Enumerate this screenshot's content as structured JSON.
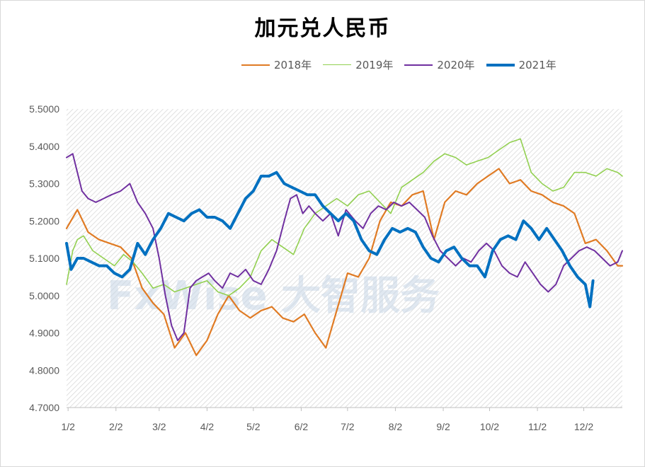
{
  "chart_data": {
    "type": "line",
    "title": "加元兑人民币",
    "watermark": "FxWise 大智服务",
    "ylim": [
      4.7,
      5.5
    ],
    "yticks": [
      "5.5000",
      "5.4000",
      "5.3000",
      "5.2000",
      "5.1000",
      "5.0000",
      "4.9000",
      "4.8000",
      "4.7000"
    ],
    "ytick_values": [
      5.5,
      5.4,
      5.3,
      5.2,
      5.1,
      5.0,
      4.9,
      4.8,
      4.7
    ],
    "xticks": [
      "1/2",
      "2/2",
      "3/2",
      "4/2",
      "5/2",
      "6/2",
      "7/2",
      "8/2",
      "9/2",
      "10/2",
      "11/2",
      "12/2"
    ],
    "xlim": [
      1,
      361
    ],
    "grid": "hatched background",
    "legend_position": "top-right",
    "series": [
      {
        "name": "2018年",
        "color": "#E07B24",
        "width": 2.2,
        "x": [
          1,
          8,
          15,
          22,
          29,
          36,
          43,
          50,
          57,
          64,
          71,
          78,
          85,
          92,
          99,
          106,
          113,
          120,
          127,
          134,
          141,
          148,
          155,
          162,
          169,
          176,
          183,
          190,
          197,
          204,
          211,
          218,
          225,
          232,
          239,
          246,
          253,
          260,
          267,
          274,
          281,
          288,
          295,
          302,
          309,
          316,
          323,
          330,
          337,
          344,
          351,
          358,
          361
        ],
        "y": [
          5.18,
          5.23,
          5.17,
          5.15,
          5.14,
          5.13,
          5.1,
          5.02,
          4.98,
          4.95,
          4.86,
          4.9,
          4.84,
          4.88,
          4.95,
          5.0,
          4.96,
          4.94,
          4.96,
          4.97,
          4.94,
          4.93,
          4.95,
          4.9,
          4.86,
          4.96,
          5.06,
          5.05,
          5.1,
          5.2,
          5.25,
          5.24,
          5.27,
          5.28,
          5.15,
          5.25,
          5.28,
          5.27,
          5.3,
          5.32,
          5.34,
          5.3,
          5.31,
          5.28,
          5.27,
          5.25,
          5.24,
          5.22,
          5.14,
          5.15,
          5.12,
          5.08,
          5.08
        ]
      },
      {
        "name": "2019年",
        "color": "#92D050",
        "width": 1.6,
        "x": [
          1,
          5,
          8,
          12,
          18,
          25,
          32,
          38,
          44,
          50,
          57,
          64,
          71,
          78,
          85,
          92,
          99,
          106,
          113,
          120,
          127,
          134,
          141,
          148,
          155,
          162,
          169,
          176,
          183,
          190,
          197,
          204,
          211,
          218,
          225,
          232,
          239,
          246,
          253,
          260,
          267,
          274,
          281,
          288,
          295,
          302,
          309,
          316,
          323,
          330,
          337,
          344,
          351,
          358,
          361
        ],
        "y": [
          5.03,
          5.12,
          5.15,
          5.16,
          5.12,
          5.1,
          5.08,
          5.11,
          5.09,
          5.06,
          5.02,
          5.03,
          5.01,
          5.02,
          5.03,
          5.04,
          5.01,
          5.0,
          5.02,
          5.05,
          5.12,
          5.15,
          5.13,
          5.11,
          5.18,
          5.22,
          5.24,
          5.26,
          5.24,
          5.27,
          5.28,
          5.25,
          5.22,
          5.29,
          5.31,
          5.33,
          5.36,
          5.38,
          5.37,
          5.35,
          5.36,
          5.37,
          5.39,
          5.41,
          5.42,
          5.33,
          5.3,
          5.28,
          5.29,
          5.33,
          5.33,
          5.32,
          5.34,
          5.33,
          5.32
        ]
      },
      {
        "name": "2020年",
        "color": "#7030A0",
        "width": 2.0,
        "x": [
          1,
          5,
          8,
          11,
          15,
          20,
          25,
          30,
          36,
          42,
          47,
          52,
          57,
          61,
          65,
          69,
          73,
          77,
          81,
          85,
          89,
          93,
          97,
          102,
          107,
          112,
          117,
          122,
          127,
          132,
          137,
          142,
          146,
          150,
          154,
          158,
          162,
          167,
          172,
          177,
          182,
          188,
          193,
          198,
          203,
          208,
          213,
          218,
          223,
          228,
          233,
          238,
          243,
          248,
          253,
          258,
          263,
          268,
          273,
          278,
          283,
          288,
          293,
          298,
          303,
          308,
          313,
          318,
          323,
          328,
          333,
          338,
          343,
          348,
          353,
          358,
          361
        ],
        "y": [
          5.37,
          5.38,
          5.33,
          5.28,
          5.26,
          5.25,
          5.26,
          5.27,
          5.28,
          5.3,
          5.25,
          5.22,
          5.18,
          5.1,
          5.0,
          4.92,
          4.88,
          4.9,
          5.02,
          5.04,
          5.05,
          5.06,
          5.04,
          5.02,
          5.06,
          5.05,
          5.07,
          5.04,
          5.03,
          5.07,
          5.12,
          5.2,
          5.26,
          5.27,
          5.22,
          5.24,
          5.22,
          5.2,
          5.22,
          5.16,
          5.23,
          5.2,
          5.18,
          5.22,
          5.24,
          5.23,
          5.25,
          5.24,
          5.25,
          5.23,
          5.21,
          5.16,
          5.12,
          5.1,
          5.08,
          5.1,
          5.09,
          5.12,
          5.14,
          5.12,
          5.08,
          5.06,
          5.05,
          5.09,
          5.06,
          5.03,
          5.01,
          5.03,
          5.08,
          5.1,
          5.12,
          5.13,
          5.12,
          5.1,
          5.08,
          5.09,
          5.12
        ]
      },
      {
        "name": "2021年",
        "color": "#0070C0",
        "width": 4.0,
        "x": [
          1,
          4,
          8,
          12,
          17,
          22,
          27,
          32,
          37,
          42,
          47,
          52,
          57,
          62,
          67,
          72,
          77,
          82,
          87,
          92,
          97,
          102,
          107,
          112,
          117,
          122,
          127,
          132,
          137,
          142,
          147,
          152,
          157,
          162,
          167,
          172,
          177,
          182,
          187,
          192,
          197,
          202,
          207,
          212,
          217,
          222,
          227,
          232,
          237,
          242,
          247,
          252,
          257,
          262,
          267,
          272,
          277,
          282,
          287,
          292,
          297,
          302,
          307,
          312,
          317,
          322,
          327,
          332,
          337,
          340,
          342
        ],
        "y": [
          5.14,
          5.07,
          5.1,
          5.1,
          5.09,
          5.08,
          5.08,
          5.06,
          5.05,
          5.07,
          5.14,
          5.11,
          5.15,
          5.18,
          5.22,
          5.21,
          5.2,
          5.22,
          5.23,
          5.21,
          5.21,
          5.2,
          5.18,
          5.22,
          5.26,
          5.28,
          5.32,
          5.32,
          5.33,
          5.3,
          5.29,
          5.28,
          5.27,
          5.27,
          5.24,
          5.22,
          5.2,
          5.22,
          5.2,
          5.15,
          5.12,
          5.11,
          5.15,
          5.18,
          5.17,
          5.18,
          5.17,
          5.13,
          5.1,
          5.09,
          5.12,
          5.13,
          5.1,
          5.08,
          5.08,
          5.05,
          5.12,
          5.15,
          5.16,
          5.15,
          5.2,
          5.18,
          5.15,
          5.18,
          5.15,
          5.12,
          5.08,
          5.05,
          5.03,
          4.97,
          5.04
        ]
      }
    ]
  }
}
